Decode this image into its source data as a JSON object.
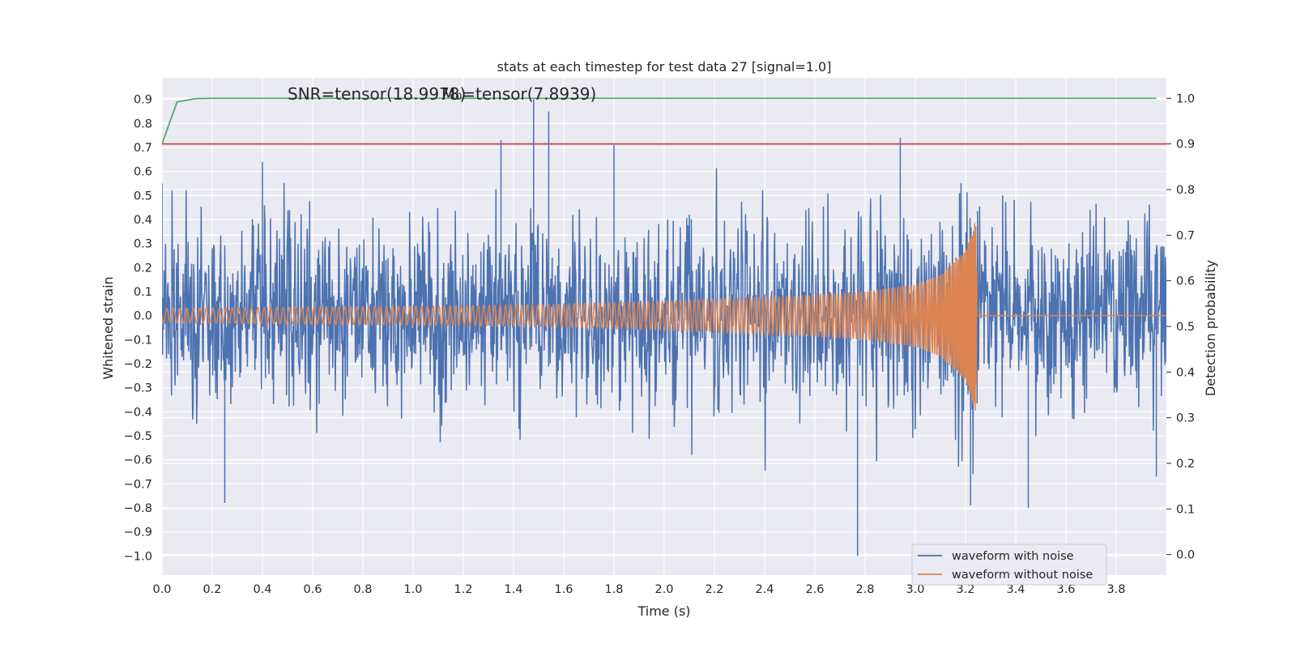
{
  "chart_data": {
    "type": "line",
    "title": "stats at each timestep for test data 27 [signal=1.0]",
    "xlabel": "Time (s)",
    "ylabel_left": "Whitened strain",
    "ylabel_right": "Detection probability",
    "xlim": [
      0.0,
      4.0
    ],
    "ylim_left": [
      -1.08,
      0.99
    ],
    "ylim_right": [
      -0.045,
      1.045
    ],
    "x_ticks": [
      "0.0",
      "0.2",
      "0.4",
      "0.6",
      "0.8",
      "1.0",
      "1.2",
      "1.4",
      "1.6",
      "1.8",
      "2.0",
      "2.2",
      "2.4",
      "2.6",
      "2.8",
      "3.0",
      "3.2",
      "3.4",
      "3.6",
      "3.8"
    ],
    "y_ticks_left": [
      "0.9",
      "0.8",
      "0.7",
      "0.6",
      "0.5",
      "0.4",
      "0.3",
      "0.2",
      "0.1",
      "0.0",
      "−0.1",
      "−0.2",
      "−0.3",
      "−0.4",
      "−0.5",
      "−0.6",
      "−0.7",
      "−0.8",
      "−0.9",
      "−1.0"
    ],
    "y_ticks_right": [
      "1.0",
      "0.9",
      "0.8",
      "0.7",
      "0.6",
      "0.5",
      "0.4",
      "0.3",
      "0.2",
      "0.1",
      "0.0"
    ],
    "grid": true,
    "legend_position": "lower-right",
    "annotations": [
      "SNR=tensor(18.9978)",
      "M₀=tensor(7.8939)"
    ],
    "series": [
      {
        "name": "waveform with noise",
        "axis": "left",
        "color": "#4c72b0",
        "kind": "noisy strain, roughly Gaussian with std ~0.2 over 0–4 s",
        "x": [
          0.0,
          0.25,
          0.4,
          1.35,
          1.48,
          1.54,
          1.8,
          2.77,
          2.94,
          3.22,
          3.45,
          3.96
        ],
        "y": [
          0.55,
          -0.78,
          0.64,
          0.73,
          0.9,
          0.85,
          0.71,
          -1.0,
          0.74,
          -0.79,
          -0.8,
          -0.67
        ]
      },
      {
        "name": "waveform without noise",
        "axis": "left",
        "color": "#dd8452",
        "kind": "inspiral chirp, amplitude growing until merger",
        "x": [
          0.0,
          0.5,
          1.0,
          1.5,
          2.0,
          2.5,
          2.8,
          3.0,
          3.1,
          3.2,
          3.24,
          3.25,
          4.0
        ],
        "y_envelope": [
          0.03,
          0.035,
          0.04,
          0.045,
          0.06,
          0.08,
          0.1,
          0.13,
          0.17,
          0.27,
          0.4,
          0.0,
          0.0
        ]
      },
      {
        "name": "",
        "axis": "right",
        "color": "#55a868",
        "x": [
          0.0,
          0.06,
          0.13,
          0.2,
          3.96
        ],
        "y": [
          0.9,
          0.992,
          0.999,
          1.0,
          1.0
        ]
      },
      {
        "name": "",
        "axis": "right",
        "color": "#c44e52",
        "kind": "threshold",
        "x": [
          0.0,
          4.0
        ],
        "y": [
          0.9,
          0.9
        ]
      }
    ]
  }
}
